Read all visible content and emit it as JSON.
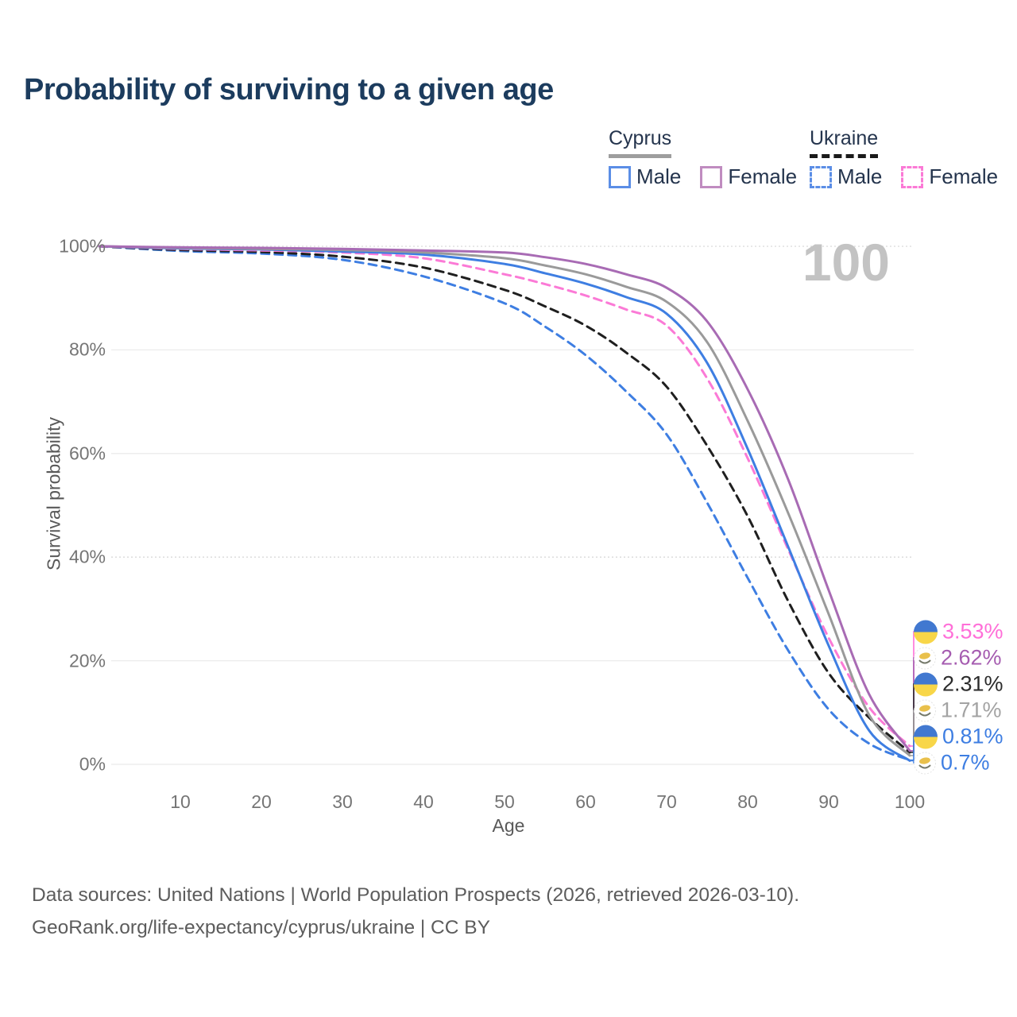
{
  "title": "Probability of surviving to a given age",
  "legend": {
    "groups": [
      {
        "name": "Cyprus",
        "underline_style": "solid",
        "underline_color": "#9e9e9e",
        "items": [
          {
            "label": "Male",
            "style": "solid",
            "color": "#5b8ee6"
          },
          {
            "label": "Female",
            "style": "solid",
            "color": "#c08cc0"
          }
        ]
      },
      {
        "name": "Ukraine",
        "underline_style": "dashed",
        "underline_color": "#1a1a1a",
        "items": [
          {
            "label": "Male",
            "style": "dashed",
            "color": "#5b8ee6"
          },
          {
            "label": "Female",
            "style": "dashed",
            "color": "#fb7ad6"
          }
        ]
      }
    ]
  },
  "hover_age_label": "100",
  "chart_data": {
    "type": "line",
    "title": "Probability of surviving to a given age",
    "xlabel": "Age",
    "ylabel": "Survival probability",
    "xlim": [
      0,
      100
    ],
    "ylim": [
      0,
      100
    ],
    "grid": "horizontal",
    "x_ticks": [
      10,
      20,
      30,
      40,
      50,
      60,
      70,
      80,
      90,
      100
    ],
    "y_ticks": [
      {
        "value": 0,
        "label": "0%"
      },
      {
        "value": 20,
        "label": "20%"
      },
      {
        "value": 40,
        "label": "40%"
      },
      {
        "value": 60,
        "label": "60%"
      },
      {
        "value": 80,
        "label": "80%"
      },
      {
        "value": 100,
        "label": "100%"
      }
    ],
    "x": [
      0,
      10,
      20,
      30,
      40,
      50,
      55,
      60,
      65,
      70,
      75,
      80,
      85,
      90,
      95,
      100
    ],
    "series": [
      {
        "name": "Ukraine Male",
        "country": "ukraine",
        "sex": "male",
        "style": "dashed",
        "color": "#3e7ee2",
        "values": [
          100,
          99.1,
          98.6,
          97.4,
          94.2,
          89.0,
          84.5,
          79.0,
          72.0,
          63.7,
          50.5,
          36.0,
          22.0,
          10.6,
          4.0,
          0.81
        ],
        "value_at_100": "0.81%"
      },
      {
        "name": "Ukraine Both sexes",
        "country": "ukraine",
        "sex": "both",
        "style": "dashed",
        "color": "#1f1f1f",
        "values": [
          100,
          99.3,
          98.9,
          98.0,
          95.9,
          91.6,
          88.4,
          84.7,
          79.5,
          72.9,
          61.5,
          47.9,
          31.5,
          17.6,
          9.0,
          2.31
        ],
        "value_at_100": "2.31%"
      },
      {
        "name": "Ukraine Female",
        "country": "ukraine",
        "sex": "female",
        "style": "dashed",
        "color": "#fb7ad6",
        "values": [
          100,
          99.5,
          99.2,
          98.8,
          97.7,
          94.6,
          92.7,
          90.5,
          87.8,
          84.7,
          74.5,
          59.1,
          41.5,
          24.4,
          11.0,
          3.53
        ],
        "value_at_100": "3.53%"
      },
      {
        "name": "Cyprus Male",
        "country": "cyprus",
        "sex": "male",
        "style": "solid",
        "color": "#3e7ee2",
        "values": [
          100,
          99.6,
          99.4,
          99.0,
          98.4,
          96.6,
          94.8,
          92.8,
          90.2,
          87.0,
          77.5,
          60.9,
          42.0,
          22.9,
          6.5,
          0.7
        ],
        "value_at_100": "0.7%"
      },
      {
        "name": "Cyprus Both sexes",
        "country": "cyprus",
        "sex": "both",
        "style": "solid",
        "color": "#9a9a9a",
        "values": [
          100,
          99.7,
          99.5,
          99.3,
          98.8,
          97.7,
          96.3,
          94.6,
          92.2,
          89.3,
          81.5,
          66.3,
          48.5,
          29.0,
          9.5,
          1.71
        ],
        "value_at_100": "1.71%"
      },
      {
        "name": "Cyprus Female",
        "country": "cyprus",
        "sex": "female",
        "style": "solid",
        "color": "#a86bb4",
        "values": [
          100,
          99.8,
          99.7,
          99.5,
          99.2,
          98.8,
          97.9,
          96.6,
          94.6,
          92.0,
          85.5,
          72.4,
          55.0,
          33.6,
          13.5,
          2.62
        ],
        "value_at_100": "2.62%"
      }
    ],
    "end_labels": [
      {
        "flag": "ukraine",
        "text": "3.53%",
        "color": "#ff6fd8",
        "series": "Ukraine Female"
      },
      {
        "flag": "cyprus",
        "text": "2.62%",
        "color": "#a55cb0",
        "series": "Cyprus Female"
      },
      {
        "flag": "ukraine",
        "text": "2.31%",
        "color": "#2b2b2b",
        "series": "Ukraine Both sexes"
      },
      {
        "flag": "cyprus",
        "text": "1.71%",
        "color": "#a3a3a3",
        "series": "Cyprus Both sexes"
      },
      {
        "flag": "ukraine",
        "text": "0.81%",
        "color": "#3e7ee2",
        "series": "Ukraine Male"
      },
      {
        "flag": "cyprus",
        "text": "0.7%",
        "color": "#3e7ee2",
        "series": "Cyprus Male"
      }
    ]
  },
  "footer": {
    "line1": "Data sources: United Nations | World Population Prospects (2026, retrieved 2026-03-10).",
    "line2": "GeoRank.org/life-expectancy/cyprus/ukraine | CC BY"
  }
}
